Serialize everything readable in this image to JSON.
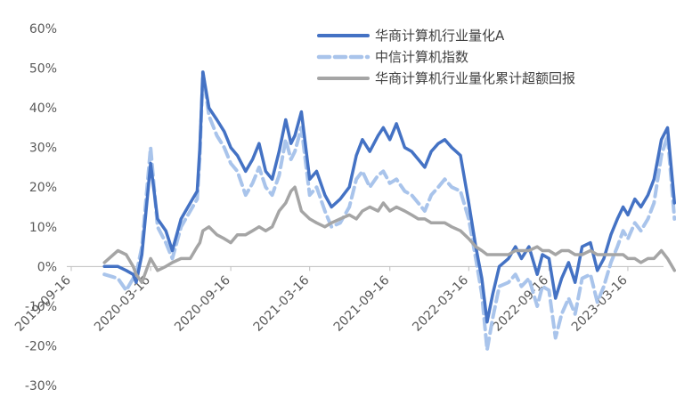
{
  "chart_data": {
    "type": "line",
    "title": "",
    "xlabel": "",
    "ylabel": "",
    "ylim": [
      -30,
      60
    ],
    "y_ticks": [
      "60%",
      "50%",
      "40%",
      "30%",
      "20%",
      "10%",
      "0%",
      "-10%",
      "-20%",
      "-30%"
    ],
    "y_tick_values": [
      60,
      50,
      40,
      30,
      20,
      10,
      0,
      -10,
      -20,
      -30
    ],
    "x_ticks": [
      "2019-09-16",
      "2020-03-16",
      "2020-09-16",
      "2021-03-16",
      "2021-09-16",
      "2022-03-16",
      "2022-09-16",
      "2023-03-16"
    ],
    "grid": false,
    "legend_position": "top-right",
    "x": [
      "2019-12-01",
      "2020-01-01",
      "2020-01-20",
      "2020-02-05",
      "2020-02-12",
      "2020-02-25",
      "2020-03-16",
      "2020-04-01",
      "2020-04-20",
      "2020-05-05",
      "2020-05-25",
      "2020-06-15",
      "2020-07-01",
      "2020-07-07",
      "2020-07-14",
      "2020-07-28",
      "2020-08-15",
      "2020-09-01",
      "2020-09-16",
      "2020-10-01",
      "2020-10-20",
      "2020-11-05",
      "2020-11-20",
      "2020-12-05",
      "2020-12-20",
      "2021-01-05",
      "2021-01-20",
      "2021-02-01",
      "2021-02-10",
      "2021-02-25",
      "2021-03-16",
      "2021-04-01",
      "2021-04-20",
      "2021-05-05",
      "2021-05-25",
      "2021-06-15",
      "2021-07-01",
      "2021-07-15",
      "2021-08-01",
      "2021-08-20",
      "2021-09-01",
      "2021-09-16",
      "2021-10-01",
      "2021-10-20",
      "2021-11-05",
      "2021-11-20",
      "2021-12-05",
      "2021-12-20",
      "2022-01-05",
      "2022-01-20",
      "2022-02-05",
      "2022-02-25",
      "2022-03-16",
      "2022-04-01",
      "2022-04-15",
      "2022-04-27",
      "2022-05-10",
      "2022-05-25",
      "2022-06-15",
      "2022-07-01",
      "2022-07-15",
      "2022-08-01",
      "2022-08-20",
      "2022-09-01",
      "2022-09-16",
      "2022-10-01",
      "2022-10-15",
      "2022-10-31",
      "2022-11-15",
      "2022-12-01",
      "2022-12-20",
      "2023-01-05",
      "2023-01-20",
      "2023-02-05",
      "2023-02-20",
      "2023-03-05",
      "2023-03-16",
      "2023-04-01",
      "2023-04-15",
      "2023-05-01",
      "2023-05-15",
      "2023-06-01",
      "2023-06-15",
      "2023-07-01"
    ],
    "series": [
      {
        "name": "华商计算机行业量化A",
        "color": "#4472C4",
        "dash": "solid",
        "values": [
          0,
          0,
          -1,
          -2,
          -4,
          3,
          26,
          12,
          9,
          4,
          12,
          16,
          19,
          30,
          49,
          40,
          37,
          34,
          30,
          28,
          24,
          27,
          31,
          24,
          22,
          29,
          37,
          31,
          33,
          39,
          22,
          24,
          18,
          15,
          17,
          20,
          28,
          32,
          29,
          33,
          35,
          32,
          36,
          30,
          29,
          27,
          25,
          29,
          31,
          32,
          30,
          28,
          16,
          5,
          -3,
          -14,
          -7,
          0,
          2,
          5,
          2,
          5,
          -2,
          3,
          2,
          -8,
          -3,
          1,
          -4,
          5,
          6,
          -1,
          2,
          8,
          12,
          15,
          13,
          17,
          15,
          18,
          22,
          32,
          35,
          16
        ]
      },
      {
        "name": "中信计算机指数",
        "color": "#A9C4EB",
        "dash": "dashed",
        "values": [
          -2,
          -3,
          -6,
          -3,
          -2,
          5,
          30,
          10,
          6,
          2,
          10,
          14,
          17,
          28,
          49,
          38,
          33,
          30,
          26,
          24,
          18,
          21,
          25,
          20,
          18,
          23,
          32,
          27,
          29,
          35,
          18,
          20,
          14,
          10,
          11,
          15,
          22,
          24,
          20,
          23,
          24,
          21,
          22,
          19,
          18,
          16,
          14,
          18,
          20,
          22,
          20,
          19,
          12,
          2,
          -7,
          -21,
          -13,
          -5,
          -4,
          -2,
          -5,
          -3,
          -10,
          -5,
          -6,
          -18,
          -12,
          -8,
          -12,
          -3,
          -2,
          -9,
          -5,
          1,
          5,
          9,
          7,
          11,
          9,
          12,
          16,
          28,
          33,
          12
        ]
      },
      {
        "name": "华商计算机行业量化累计超额回报",
        "color": "#A5A5A5",
        "dash": "solid",
        "values": [
          1,
          4,
          3,
          0,
          -2,
          -4,
          2,
          -1,
          0,
          1,
          2,
          2,
          5,
          6,
          9,
          10,
          8,
          7,
          6,
          8,
          8,
          9,
          10,
          9,
          10,
          14,
          16,
          19,
          20,
          14,
          12,
          11,
          10,
          11,
          12,
          13,
          12,
          14,
          15,
          14,
          16,
          14,
          15,
          14,
          13,
          12,
          12,
          11,
          11,
          11,
          10,
          9,
          7,
          5,
          4,
          3,
          3,
          3,
          3,
          4,
          4,
          4,
          5,
          4,
          4,
          3,
          4,
          4,
          3,
          3,
          4,
          3,
          3,
          3,
          3,
          3,
          2,
          2,
          1,
          2,
          2,
          4,
          2,
          -1
        ]
      }
    ]
  }
}
